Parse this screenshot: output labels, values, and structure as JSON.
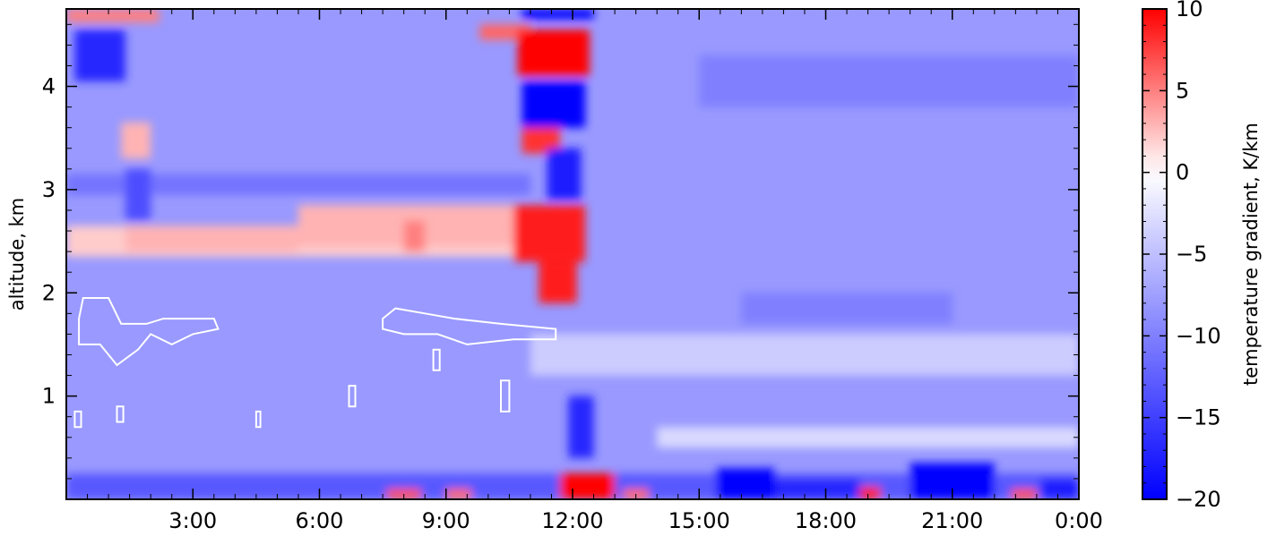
{
  "chart_data": {
    "type": "heatmap",
    "title": "",
    "xlabel": "",
    "ylabel": "altitude, km",
    "colorbar_label": "temperature gradient, K/km",
    "x_range_hours": [
      0,
      24
    ],
    "ylim": [
      0,
      4.75
    ],
    "x_ticks": [
      {
        "hour": 3,
        "label": "3:00"
      },
      {
        "hour": 6,
        "label": "6:00"
      },
      {
        "hour": 9,
        "label": "9:00"
      },
      {
        "hour": 12,
        "label": "12:00"
      },
      {
        "hour": 15,
        "label": "15:00"
      },
      {
        "hour": 18,
        "label": "18:00"
      },
      {
        "hour": 21,
        "label": "21:00"
      },
      {
        "hour": 24,
        "label": "0:00"
      }
    ],
    "y_ticks": [
      {
        "value": 1,
        "label": "1"
      },
      {
        "value": 2,
        "label": "2"
      },
      {
        "value": 3,
        "label": "3"
      },
      {
        "value": 4,
        "label": "4"
      }
    ],
    "color_scale": {
      "min": -20,
      "max": 10,
      "center": 0,
      "colors": {
        "low": "#0000ff",
        "mid": "#ffffff",
        "high": "#ff0000"
      },
      "ticks": [
        {
          "value": 10,
          "label": "10"
        },
        {
          "value": 5,
          "label": "5"
        },
        {
          "value": 0,
          "label": "0"
        },
        {
          "value": -5,
          "label": "−5"
        },
        {
          "value": -10,
          "label": "−10"
        },
        {
          "value": -15,
          "label": "−15"
        },
        {
          "value": -20,
          "label": "−20"
        }
      ]
    },
    "background_value": -8,
    "horizontal_bands": [
      {
        "h0": 0,
        "h1": 11,
        "alt0": 2.35,
        "alt1": 2.65,
        "value": 2
      },
      {
        "h0": 11,
        "h1": 24,
        "alt0": 1.2,
        "alt1": 1.6,
        "value": -4
      },
      {
        "h0": 14,
        "h1": 24,
        "alt0": 0.5,
        "alt1": 0.7,
        "value": -3
      },
      {
        "h0": 0,
        "h1": 11,
        "alt0": 2.95,
        "alt1": 3.15,
        "value": -11
      },
      {
        "h0": 0,
        "h1": 24,
        "alt0": 0,
        "alt1": 0.25,
        "value": -13
      }
    ],
    "features": [
      {
        "h0": 0.0,
        "h1": 2.2,
        "alt0": 4.62,
        "alt1": 4.75,
        "value": 5
      },
      {
        "h0": 0.2,
        "h1": 1.4,
        "alt0": 4.05,
        "alt1": 4.55,
        "value": -17
      },
      {
        "h0": 1.3,
        "h1": 2.0,
        "alt0": 3.3,
        "alt1": 3.65,
        "value": 3
      },
      {
        "h0": 1.4,
        "h1": 2.0,
        "alt0": 2.7,
        "alt1": 3.2,
        "value": -14
      },
      {
        "h0": 1.4,
        "h1": 5.5,
        "alt0": 2.4,
        "alt1": 2.65,
        "value": 3
      },
      {
        "h0": 5.5,
        "h1": 10.8,
        "alt0": 2.45,
        "alt1": 2.85,
        "value": 3
      },
      {
        "h0": 8.0,
        "h1": 8.5,
        "alt0": 2.4,
        "alt1": 2.7,
        "value": 5
      },
      {
        "h0": 9.8,
        "h1": 11.0,
        "alt0": 4.45,
        "alt1": 4.6,
        "value": 6
      },
      {
        "h0": 10.8,
        "h1": 12.5,
        "alt0": 4.65,
        "alt1": 4.75,
        "value": -20
      },
      {
        "h0": 10.7,
        "h1": 12.4,
        "alt0": 4.1,
        "alt1": 4.55,
        "value": 10
      },
      {
        "h0": 10.8,
        "h1": 12.3,
        "alt0": 3.6,
        "alt1": 4.05,
        "value": -20
      },
      {
        "h0": 10.8,
        "h1": 11.7,
        "alt0": 3.35,
        "alt1": 3.6,
        "value": 8
      },
      {
        "h0": 11.4,
        "h1": 12.2,
        "alt0": 2.9,
        "alt1": 3.4,
        "value": -18
      },
      {
        "h0": 10.6,
        "h1": 12.3,
        "alt0": 2.3,
        "alt1": 2.85,
        "value": 9
      },
      {
        "h0": 11.2,
        "h1": 12.1,
        "alt0": 1.9,
        "alt1": 2.3,
        "value": 9
      },
      {
        "h0": 11.9,
        "h1": 12.5,
        "alt0": 0.4,
        "alt1": 1.0,
        "value": -17
      },
      {
        "h0": 11.7,
        "h1": 13.0,
        "alt0": 0.0,
        "alt1": 0.25,
        "value": 10
      },
      {
        "h0": 7.6,
        "h1": 8.4,
        "alt0": 0.0,
        "alt1": 0.1,
        "value": 7
      },
      {
        "h0": 9.0,
        "h1": 9.6,
        "alt0": 0.0,
        "alt1": 0.1,
        "value": 6
      },
      {
        "h0": 13.2,
        "h1": 13.8,
        "alt0": 0.0,
        "alt1": 0.1,
        "value": 6
      },
      {
        "h0": 15.4,
        "h1": 16.8,
        "alt0": 0.0,
        "alt1": 0.3,
        "value": -20
      },
      {
        "h0": 16.8,
        "h1": 18.8,
        "alt0": 0.0,
        "alt1": 0.2,
        "value": -17
      },
      {
        "h0": 18.8,
        "h1": 19.3,
        "alt0": 0.0,
        "alt1": 0.12,
        "value": 9
      },
      {
        "h0": 20.0,
        "h1": 22.0,
        "alt0": 0.0,
        "alt1": 0.35,
        "value": -20
      },
      {
        "h0": 22.4,
        "h1": 23.0,
        "alt0": 0.0,
        "alt1": 0.1,
        "value": 7
      },
      {
        "h0": 23.1,
        "h1": 24.0,
        "alt0": 0.0,
        "alt1": 0.2,
        "value": -18
      },
      {
        "h0": 15.0,
        "h1": 24.0,
        "alt0": 3.8,
        "alt1": 4.3,
        "value": -10
      },
      {
        "h0": 16.0,
        "h1": 21.0,
        "alt0": 1.7,
        "alt1": 2.0,
        "value": -10
      }
    ],
    "contour_level_K_per_km": 0,
    "contours": [
      [
        [
          0.3,
          1.75
        ],
        [
          0.4,
          1.95
        ],
        [
          1.0,
          1.95
        ],
        [
          1.3,
          1.7
        ],
        [
          1.9,
          1.7
        ],
        [
          2.3,
          1.75
        ],
        [
          3.5,
          1.75
        ],
        [
          3.6,
          1.65
        ],
        [
          3.0,
          1.6
        ],
        [
          2.5,
          1.5
        ],
        [
          2.0,
          1.6
        ],
        [
          1.7,
          1.45
        ],
        [
          1.2,
          1.3
        ],
        [
          0.8,
          1.5
        ],
        [
          0.3,
          1.5
        ]
      ],
      [
        [
          7.5,
          1.75
        ],
        [
          7.8,
          1.85
        ],
        [
          8.5,
          1.8
        ],
        [
          9.2,
          1.75
        ],
        [
          10.3,
          1.7
        ],
        [
          11.6,
          1.65
        ],
        [
          11.6,
          1.55
        ],
        [
          10.6,
          1.55
        ],
        [
          9.5,
          1.5
        ],
        [
          8.8,
          1.6
        ],
        [
          8.0,
          1.6
        ],
        [
          7.5,
          1.65
        ]
      ],
      [
        [
          0.2,
          0.85
        ],
        [
          0.35,
          0.85
        ],
        [
          0.35,
          0.7
        ],
        [
          0.2,
          0.7
        ]
      ],
      [
        [
          1.2,
          0.9
        ],
        [
          1.35,
          0.9
        ],
        [
          1.35,
          0.75
        ],
        [
          1.2,
          0.75
        ]
      ],
      [
        [
          4.5,
          0.85
        ],
        [
          4.6,
          0.85
        ],
        [
          4.6,
          0.7
        ],
        [
          4.5,
          0.7
        ]
      ],
      [
        [
          6.7,
          1.1
        ],
        [
          6.85,
          1.1
        ],
        [
          6.85,
          0.9
        ],
        [
          6.7,
          0.9
        ]
      ],
      [
        [
          8.7,
          1.45
        ],
        [
          8.85,
          1.45
        ],
        [
          8.85,
          1.25
        ],
        [
          8.7,
          1.25
        ]
      ],
      [
        [
          10.3,
          1.15
        ],
        [
          10.5,
          1.15
        ],
        [
          10.5,
          0.85
        ],
        [
          10.3,
          0.85
        ]
      ]
    ]
  }
}
